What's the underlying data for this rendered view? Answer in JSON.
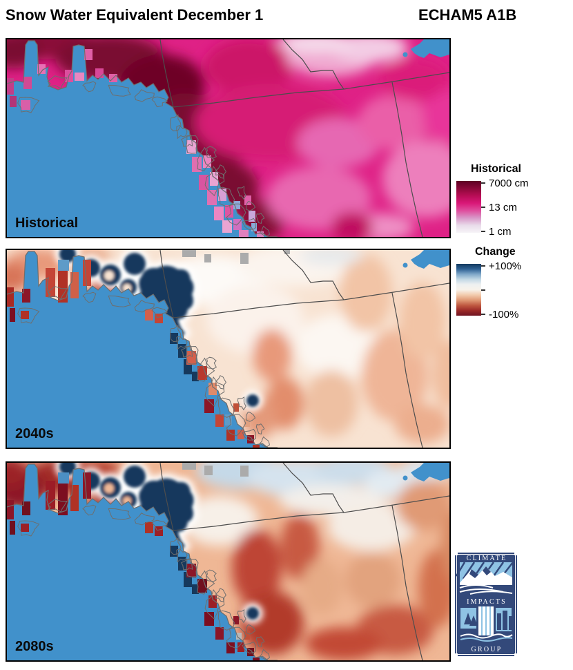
{
  "header": {
    "title": "Snow Water Equivalent December 1",
    "scenario": "ECHAM5 A1B"
  },
  "panels": [
    {
      "label": "Historical"
    },
    {
      "label": "2040s"
    },
    {
      "label": "2080s"
    }
  ],
  "legends": {
    "historical": {
      "title": "Historical",
      "tick_top": "7000 cm",
      "tick_mid": "13 cm",
      "tick_bottom": "1 cm"
    },
    "change": {
      "title": "Change",
      "tick_top": "+100%",
      "tick_bottom": "-100%"
    }
  },
  "logo": {
    "line1": "CLIMATE",
    "line2": "IMPACTS",
    "line3": "GROUP"
  },
  "colors": {
    "ocean": "#4191CB",
    "border_gray": "#4D4D4D",
    "coast_gray": "#6E6E6E",
    "panel_border": "#000000",
    "nodata_gray": "#ABABAB",
    "swe_increase_navy": "#16395D",
    "logo_navy": "#33497A",
    "logo_lightblue": "#8FC3E4",
    "historical_gradient": [
      "#5E0024",
      "#8A0838",
      "#B80D56",
      "#D91878",
      "#DF4E9E",
      "#D898C8",
      "#E9DCEA",
      "#F6F4F7"
    ],
    "change_gradient": [
      "#12395F",
      "#2E6093",
      "#7FA8C9",
      "#C3D8E5",
      "#EEF1F1",
      "#F7F2EB",
      "#F2CBAD",
      "#E09A76",
      "#C05A41",
      "#9C2A28",
      "#701322"
    ]
  }
}
